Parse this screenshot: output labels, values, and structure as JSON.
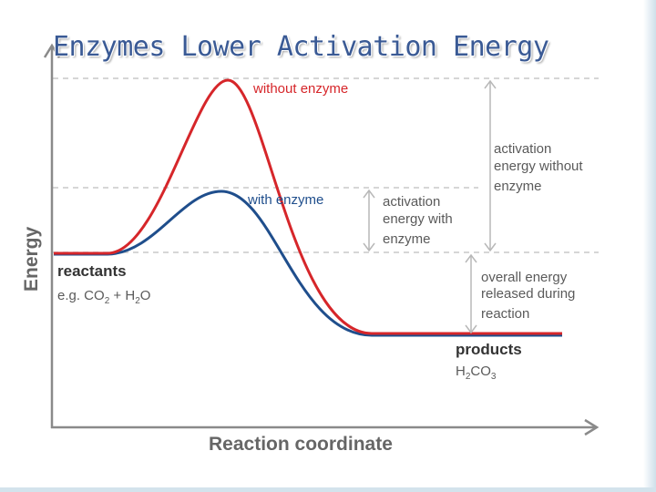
{
  "slide": {
    "title": "Enzymes Lower Activation Energy"
  },
  "diagram": {
    "y_axis_label": "Energy",
    "x_axis_label": "Reaction coordinate",
    "curves": {
      "without_enzyme": {
        "label": "without enzyme",
        "color": "#d6262a"
      },
      "with_enzyme": {
        "label": "with enzyme",
        "color": "#1f4e8c"
      }
    },
    "reactants": {
      "title": "reactants",
      "example": {
        "prefix": "e.g. CO",
        "sub1": "2",
        "mid": " + H",
        "sub2": "2",
        "suffix": "O"
      }
    },
    "products": {
      "title": "products",
      "formula": {
        "a": "H",
        "sub1": "2",
        "b": "CO",
        "sub2": "3"
      }
    },
    "annotations": {
      "activation_without": [
        "activation",
        "energy without",
        "enzyme"
      ],
      "activation_with": [
        "activation",
        "energy with",
        "enzyme"
      ],
      "overall_released": [
        "overall energy",
        "released during",
        "reaction"
      ]
    },
    "colors": {
      "axis": "#8a8a8a",
      "dashed": "#c8c8c8",
      "arrow": "#b8b8b8",
      "label": "#5a5a5a",
      "bold_label": "#333333",
      "title": "#3a5a95"
    }
  }
}
